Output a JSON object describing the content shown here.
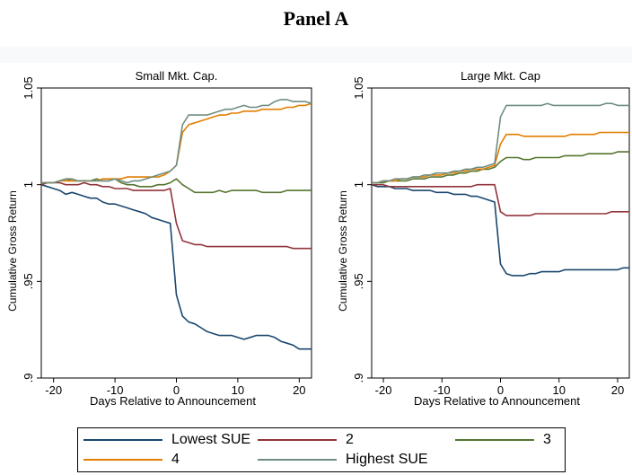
{
  "panel_title": "Panel A",
  "colors": {
    "Lowest SUE": "#1a476f",
    "2": "#90353b",
    "3": "#55752f",
    "4": "#e37e00",
    "Highest SUE": "#6e8e84"
  },
  "legend": [
    {
      "label": "Lowest SUE"
    },
    {
      "label": "2"
    },
    {
      "label": "3"
    },
    {
      "label": "4"
    },
    {
      "label": "Highest SUE"
    }
  ],
  "chart_data": [
    {
      "type": "line",
      "title": "Small Mkt. Cap.",
      "xlabel": "Days Relative to Announcement",
      "ylabel": "Cumulative Gross Return",
      "xlim": [
        -22,
        22
      ],
      "ylim": [
        0.9,
        1.05
      ],
      "xticks": [
        "-20",
        "-10",
        "0",
        "10",
        "20"
      ],
      "yticks": [
        ".9",
        ".95",
        "1",
        "1.05"
      ],
      "grid": false,
      "x": [
        -22,
        -21,
        -20,
        -19,
        -18,
        -17,
        -16,
        -15,
        -14,
        -13,
        -12,
        -11,
        -10,
        -9,
        -8,
        -7,
        -6,
        -5,
        -4,
        -3,
        -2,
        -1,
        0,
        1,
        2,
        3,
        4,
        5,
        6,
        7,
        8,
        9,
        10,
        11,
        12,
        13,
        14,
        15,
        16,
        17,
        18,
        19,
        20,
        21,
        22
      ],
      "series": [
        {
          "name": "Lowest SUE",
          "values": [
            1.0,
            0.999,
            0.998,
            0.997,
            0.995,
            0.996,
            0.995,
            0.994,
            0.993,
            0.993,
            0.991,
            0.99,
            0.99,
            0.989,
            0.988,
            0.987,
            0.986,
            0.985,
            0.983,
            0.982,
            0.981,
            0.98,
            0.943,
            0.932,
            0.929,
            0.928,
            0.926,
            0.924,
            0.923,
            0.922,
            0.922,
            0.922,
            0.921,
            0.92,
            0.921,
            0.922,
            0.922,
            0.922,
            0.921,
            0.919,
            0.918,
            0.917,
            0.915,
            0.915,
            0.915
          ]
        },
        {
          "name": "2",
          "values": [
            1.0,
            1.001,
            1.001,
            1.001,
            1.0,
            1.0,
            1.0,
            1.001,
            1.0,
            1.0,
            0.999,
            0.999,
            0.998,
            0.998,
            0.998,
            0.997,
            0.997,
            0.997,
            0.997,
            0.997,
            0.997,
            0.998,
            0.98,
            0.971,
            0.97,
            0.969,
            0.969,
            0.968,
            0.968,
            0.968,
            0.968,
            0.968,
            0.968,
            0.968,
            0.968,
            0.968,
            0.968,
            0.968,
            0.968,
            0.968,
            0.968,
            0.967,
            0.967,
            0.967,
            0.967
          ]
        },
        {
          "name": "3",
          "values": [
            1.001,
            1.001,
            1.001,
            1.002,
            1.003,
            1.002,
            1.002,
            1.002,
            1.002,
            1.003,
            1.002,
            1.002,
            1.003,
            1.001,
            1.0,
            1.0,
            0.999,
            0.999,
            0.999,
            1.0,
            1.0,
            1.001,
            1.003,
            1.0,
            0.998,
            0.996,
            0.996,
            0.996,
            0.996,
            0.997,
            0.996,
            0.997,
            0.997,
            0.997,
            0.997,
            0.997,
            0.996,
            0.996,
            0.996,
            0.996,
            0.997,
            0.997,
            0.997,
            0.997,
            0.997
          ]
        },
        {
          "name": "4",
          "values": [
            1.001,
            1.001,
            1.001,
            1.002,
            1.002,
            1.002,
            1.002,
            1.002,
            1.002,
            1.002,
            1.003,
            1.003,
            1.003,
            1.003,
            1.004,
            1.004,
            1.004,
            1.004,
            1.004,
            1.004,
            1.005,
            1.007,
            1.01,
            1.027,
            1.031,
            1.032,
            1.033,
            1.034,
            1.035,
            1.036,
            1.036,
            1.037,
            1.037,
            1.038,
            1.038,
            1.038,
            1.039,
            1.039,
            1.039,
            1.039,
            1.04,
            1.04,
            1.041,
            1.041,
            1.042
          ]
        },
        {
          "name": "Highest SUE",
          "values": [
            1.001,
            1.001,
            1.001,
            1.002,
            1.003,
            1.003,
            1.002,
            1.002,
            1.002,
            1.002,
            1.002,
            1.002,
            1.003,
            1.002,
            1.001,
            1.002,
            1.002,
            1.003,
            1.004,
            1.005,
            1.006,
            1.007,
            1.01,
            1.031,
            1.036,
            1.036,
            1.036,
            1.036,
            1.037,
            1.038,
            1.039,
            1.039,
            1.04,
            1.041,
            1.04,
            1.04,
            1.041,
            1.041,
            1.043,
            1.044,
            1.044,
            1.043,
            1.043,
            1.043,
            1.042
          ]
        }
      ]
    },
    {
      "type": "line",
      "title": "Large Mkt. Cap",
      "xlabel": "Days Relative to Announcement",
      "ylabel": "Cumulative Gross Return",
      "xlim": [
        -22,
        22
      ],
      "ylim": [
        0.9,
        1.05
      ],
      "xticks": [
        "-20",
        "-10",
        "0",
        "10",
        "20"
      ],
      "yticks": [
        ".9",
        ".95",
        "1",
        "1.05"
      ],
      "grid": false,
      "x": [
        -22,
        -21,
        -20,
        -19,
        -18,
        -17,
        -16,
        -15,
        -14,
        -13,
        -12,
        -11,
        -10,
        -9,
        -8,
        -7,
        -6,
        -5,
        -4,
        -3,
        -2,
        -1,
        0,
        1,
        2,
        3,
        4,
        5,
        6,
        7,
        8,
        9,
        10,
        11,
        12,
        13,
        14,
        15,
        16,
        17,
        18,
        19,
        20,
        21,
        22
      ],
      "series": [
        {
          "name": "Lowest SUE",
          "values": [
            1.0,
            0.999,
            0.999,
            0.999,
            0.998,
            0.998,
            0.998,
            0.997,
            0.997,
            0.997,
            0.997,
            0.996,
            0.996,
            0.996,
            0.995,
            0.995,
            0.995,
            0.994,
            0.994,
            0.993,
            0.992,
            0.991,
            0.959,
            0.954,
            0.953,
            0.953,
            0.953,
            0.954,
            0.954,
            0.955,
            0.955,
            0.955,
            0.955,
            0.956,
            0.956,
            0.956,
            0.956,
            0.956,
            0.956,
            0.956,
            0.956,
            0.956,
            0.956,
            0.957,
            0.957
          ]
        },
        {
          "name": "2",
          "values": [
            1.0,
            1.0,
            1.0,
            0.999,
            0.999,
            0.999,
            0.999,
            0.999,
            0.999,
            0.999,
            0.999,
            0.999,
            0.999,
            0.999,
            0.999,
            0.999,
            0.999,
            0.999,
            1.0,
            1.0,
            1.0,
            1.0,
            0.986,
            0.984,
            0.984,
            0.984,
            0.984,
            0.984,
            0.985,
            0.985,
            0.985,
            0.985,
            0.985,
            0.985,
            0.985,
            0.985,
            0.985,
            0.985,
            0.985,
            0.985,
            0.985,
            0.986,
            0.986,
            0.986,
            0.986
          ]
        },
        {
          "name": "3",
          "values": [
            1.001,
            1.001,
            1.001,
            1.002,
            1.002,
            1.002,
            1.002,
            1.003,
            1.003,
            1.003,
            1.004,
            1.004,
            1.004,
            1.005,
            1.005,
            1.006,
            1.006,
            1.007,
            1.007,
            1.008,
            1.008,
            1.009,
            1.012,
            1.014,
            1.014,
            1.014,
            1.013,
            1.013,
            1.014,
            1.014,
            1.014,
            1.014,
            1.014,
            1.015,
            1.015,
            1.015,
            1.015,
            1.016,
            1.016,
            1.016,
            1.016,
            1.016,
            1.017,
            1.017,
            1.017
          ]
        },
        {
          "name": "4",
          "values": [
            1.001,
            1.001,
            1.002,
            1.002,
            1.002,
            1.003,
            1.003,
            1.004,
            1.004,
            1.004,
            1.005,
            1.005,
            1.005,
            1.006,
            1.006,
            1.007,
            1.007,
            1.008,
            1.008,
            1.008,
            1.009,
            1.01,
            1.021,
            1.026,
            1.026,
            1.026,
            1.025,
            1.025,
            1.025,
            1.025,
            1.025,
            1.025,
            1.025,
            1.025,
            1.026,
            1.026,
            1.026,
            1.026,
            1.026,
            1.027,
            1.027,
            1.027,
            1.027,
            1.027,
            1.027
          ]
        },
        {
          "name": "Highest SUE",
          "values": [
            1.001,
            1.001,
            1.002,
            1.002,
            1.003,
            1.003,
            1.003,
            1.004,
            1.004,
            1.005,
            1.005,
            1.006,
            1.006,
            1.006,
            1.007,
            1.007,
            1.008,
            1.008,
            1.009,
            1.009,
            1.01,
            1.011,
            1.035,
            1.041,
            1.041,
            1.041,
            1.041,
            1.041,
            1.041,
            1.041,
            1.042,
            1.041,
            1.041,
            1.041,
            1.041,
            1.041,
            1.041,
            1.041,
            1.041,
            1.041,
            1.042,
            1.042,
            1.041,
            1.041,
            1.041
          ]
        }
      ]
    }
  ]
}
